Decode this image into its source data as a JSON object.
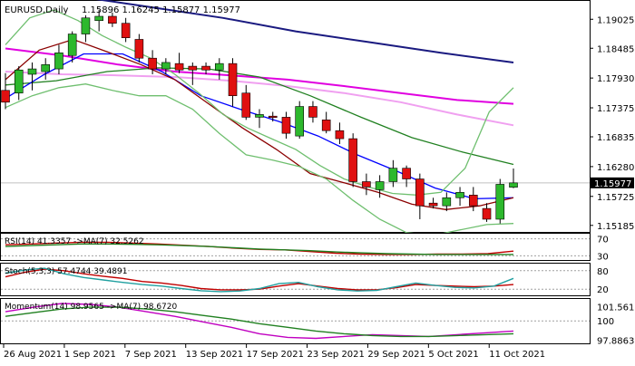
{
  "chart_data": [
    {
      "type": "candlestick",
      "title": "EURUSD,Daily",
      "ohlc_text": "1.15896 1.16245 1.15877 1.15977",
      "last_price": 1.15977,
      "last_price_label": "1.15977",
      "y_ticks": [
        "1.19025",
        "1.18485",
        "1.17930",
        "1.17375",
        "1.16835",
        "1.16280",
        "1.15725",
        "1.15185"
      ],
      "ylim": [
        1.1508,
        1.1935
      ],
      "candles": [
        {
          "o": 1.177,
          "h": 1.1802,
          "l": 1.1735,
          "c": 1.1748
        },
        {
          "o": 1.1765,
          "h": 1.1815,
          "l": 1.1752,
          "c": 1.1808
        },
        {
          "o": 1.18,
          "h": 1.1822,
          "l": 1.177,
          "c": 1.181
        },
        {
          "o": 1.1805,
          "h": 1.183,
          "l": 1.179,
          "c": 1.1818
        },
        {
          "o": 1.181,
          "h": 1.1855,
          "l": 1.18,
          "c": 1.184
        },
        {
          "o": 1.1835,
          "h": 1.188,
          "l": 1.1822,
          "c": 1.1875
        },
        {
          "o": 1.1875,
          "h": 1.191,
          "l": 1.186,
          "c": 1.1905
        },
        {
          "o": 1.19,
          "h": 1.192,
          "l": 1.188,
          "c": 1.1908
        },
        {
          "o": 1.1908,
          "h": 1.1915,
          "l": 1.1888,
          "c": 1.1895
        },
        {
          "o": 1.1895,
          "h": 1.1905,
          "l": 1.186,
          "c": 1.1868
        },
        {
          "o": 1.1865,
          "h": 1.1875,
          "l": 1.1822,
          "c": 1.183
        },
        {
          "o": 1.183,
          "h": 1.1845,
          "l": 1.18,
          "c": 1.181
        },
        {
          "o": 1.181,
          "h": 1.183,
          "l": 1.18,
          "c": 1.1822
        },
        {
          "o": 1.182,
          "h": 1.184,
          "l": 1.1802,
          "c": 1.1808
        },
        {
          "o": 1.1815,
          "h": 1.1822,
          "l": 1.178,
          "c": 1.1808
        },
        {
          "o": 1.1815,
          "h": 1.1822,
          "l": 1.18,
          "c": 1.1808
        },
        {
          "o": 1.1808,
          "h": 1.183,
          "l": 1.179,
          "c": 1.182
        },
        {
          "o": 1.182,
          "h": 1.183,
          "l": 1.174,
          "c": 1.176
        },
        {
          "o": 1.1765,
          "h": 1.178,
          "l": 1.1715,
          "c": 1.172
        },
        {
          "o": 1.172,
          "h": 1.1735,
          "l": 1.17,
          "c": 1.1725
        },
        {
          "o": 1.1722,
          "h": 1.173,
          "l": 1.1712,
          "c": 1.172
        },
        {
          "o": 1.172,
          "h": 1.173,
          "l": 1.168,
          "c": 1.169
        },
        {
          "o": 1.1685,
          "h": 1.175,
          "l": 1.168,
          "c": 1.174
        },
        {
          "o": 1.174,
          "h": 1.175,
          "l": 1.171,
          "c": 1.172
        },
        {
          "o": 1.1715,
          "h": 1.173,
          "l": 1.169,
          "c": 1.1695
        },
        {
          "o": 1.1695,
          "h": 1.171,
          "l": 1.167,
          "c": 1.168
        },
        {
          "o": 1.168,
          "h": 1.169,
          "l": 1.159,
          "c": 1.16
        },
        {
          "o": 1.16,
          "h": 1.1615,
          "l": 1.1575,
          "c": 1.159
        },
        {
          "o": 1.1585,
          "h": 1.1612,
          "l": 1.157,
          "c": 1.16
        },
        {
          "o": 1.16,
          "h": 1.164,
          "l": 1.159,
          "c": 1.1625
        },
        {
          "o": 1.1625,
          "h": 1.163,
          "l": 1.159,
          "c": 1.1605
        },
        {
          "o": 1.1605,
          "h": 1.1615,
          "l": 1.153,
          "c": 1.1555
        },
        {
          "o": 1.156,
          "h": 1.157,
          "l": 1.155,
          "c": 1.1555
        },
        {
          "o": 1.1555,
          "h": 1.158,
          "l": 1.1545,
          "c": 1.157
        },
        {
          "o": 1.157,
          "h": 1.159,
          "l": 1.1555,
          "c": 1.158
        },
        {
          "o": 1.1575,
          "h": 1.159,
          "l": 1.1545,
          "c": 1.1555
        },
        {
          "o": 1.155,
          "h": 1.156,
          "l": 1.1525,
          "c": 1.153
        },
        {
          "o": 1.153,
          "h": 1.1605,
          "l": 1.1522,
          "c": 1.1595
        },
        {
          "o": 1.15896,
          "h": 1.16245,
          "l": 1.15877,
          "c": 1.15977
        }
      ],
      "overlays": [
        {
          "color": "#1a1a80",
          "values": [
            1.196,
            1.1945,
            1.1925,
            1.1905,
            1.188,
            1.186,
            1.184,
            1.1822
          ]
        },
        {
          "color": "#e000e0",
          "values": [
            1.1848,
            1.1835,
            1.1818,
            1.1805,
            1.1798,
            1.179,
            1.1778,
            1.1765,
            1.1752,
            1.1745
          ]
        },
        {
          "color": "#f0a0f0",
          "values": [
            1.1805,
            1.18,
            1.1798,
            1.1795,
            1.1788,
            1.1778,
            1.1765,
            1.1748,
            1.1725,
            1.1705
          ]
        },
        {
          "color": "#208020",
          "values": [
            1.178,
            1.1788,
            1.1805,
            1.1812,
            1.181,
            1.1795,
            1.176,
            1.172,
            1.1682,
            1.1655,
            1.1632
          ]
        },
        {
          "color": "#0000ff",
          "values": [
            1.1755,
            1.18,
            1.1838,
            1.1838,
            1.1805,
            1.176,
            1.1735,
            1.1712,
            1.1685,
            1.165,
            1.162,
            1.1588,
            1.1568,
            1.157
          ]
        },
        {
          "color": "#8b0000",
          "values": [
            1.179,
            1.1845,
            1.1865,
            1.1842,
            1.1818,
            1.179,
            1.1745,
            1.17,
            1.166,
            1.1615,
            1.1598,
            1.158,
            1.1558,
            1.1548,
            1.1555,
            1.157
          ]
        },
        {
          "color": "#6fbf6f",
          "values": [
            1.1855,
            1.1905,
            1.192,
            1.19,
            1.1872,
            1.185,
            1.183,
            1.18,
            1.1765,
            1.1725,
            1.17,
            1.168,
            1.166,
            1.163,
            1.1605,
            1.159,
            1.1578,
            1.1575,
            1.158,
            1.1625,
            1.173,
            1.1775
          ]
        },
        {
          "color": "#6fbf6f",
          "values": [
            1.1738,
            1.176,
            1.1775,
            1.1782,
            1.177,
            1.176,
            1.176,
            1.1735,
            1.169,
            1.165,
            1.164,
            1.1628,
            1.1605,
            1.1565,
            1.153,
            1.1505,
            1.15,
            1.151,
            1.152,
            1.1522
          ]
        }
      ]
    },
    {
      "type": "line",
      "title": "RSI(14) 41.3357  ->MA(7) 32.5262",
      "y_ticks": [
        "70",
        "30"
      ],
      "ylim": [
        20,
        80
      ],
      "levels": [
        70,
        30
      ],
      "series": [
        {
          "color": "#c00000",
          "values": [
            56,
            58,
            60,
            62,
            62,
            60,
            58,
            55,
            52,
            48,
            45,
            44,
            40,
            36,
            34,
            33,
            33,
            34,
            34,
            35,
            41
          ]
        },
        {
          "color": "#208020",
          "values": [
            52,
            54,
            56,
            58,
            58,
            57,
            56,
            54,
            52,
            49,
            46,
            44,
            42,
            39,
            37,
            35,
            34,
            33,
            33,
            33,
            33
          ]
        }
      ]
    },
    {
      "type": "line",
      "title": "Stoch(5,3,3) 57.4744  39.4891",
      "y_ticks": [
        "80",
        "20"
      ],
      "ylim": [
        0,
        100
      ],
      "levels": [
        80,
        20
      ],
      "series": [
        {
          "color": "#c00000",
          "values": [
            60,
            75,
            85,
            80,
            70,
            62,
            55,
            45,
            40,
            32,
            22,
            18,
            18,
            20,
            30,
            38,
            30,
            22,
            18,
            18,
            25,
            35,
            32,
            30,
            28,
            30,
            35
          ]
        },
        {
          "color": "#20a0a0",
          "values": [
            72,
            82,
            88,
            70,
            58,
            50,
            42,
            35,
            30,
            22,
            15,
            12,
            14,
            22,
            38,
            42,
            28,
            18,
            14,
            16,
            28,
            40,
            32,
            26,
            24,
            30,
            55
          ]
        }
      ]
    },
    {
      "type": "line",
      "title": "Momentum(14) 98.9565  ->MA(7) 98.6720",
      "y_ticks": [
        "101.5616",
        "100",
        "97.8863"
      ],
      "ylim": [
        97.65,
        102.2
      ],
      "levels": [
        100
      ],
      "series": [
        {
          "color": "#c000c0",
          "values": [
            101.0,
            101.5,
            101.9,
            101.8,
            101.5,
            101.0,
            100.5,
            99.9,
            99.3,
            98.6,
            98.2,
            98.1,
            98.3,
            98.5,
            98.4,
            98.3,
            98.5,
            98.7,
            98.9
          ]
        },
        {
          "color": "#208020",
          "values": [
            100.5,
            100.9,
            101.3,
            101.5,
            101.5,
            101.3,
            101.0,
            100.6,
            100.2,
            99.7,
            99.3,
            98.9,
            98.6,
            98.4,
            98.3,
            98.3,
            98.4,
            98.5,
            98.6
          ]
        }
      ]
    }
  ],
  "x_ticks": [
    "26 Aug 2021",
    "1 Sep 2021",
    "7 Sep 2021",
    "13 Sep 2021",
    "17 Sep 2021",
    "23 Sep 2021",
    "29 Sep 2021",
    "5 Oct 2021",
    "11 Oct 2021"
  ]
}
